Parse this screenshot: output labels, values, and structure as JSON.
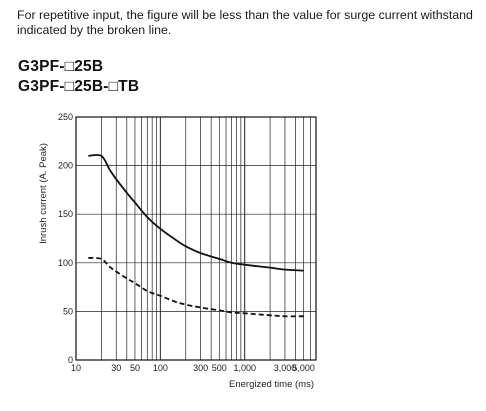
{
  "note": "For repetitive input, the figure will be less than the value for surge current withstand indicated by the broken line.",
  "models": [
    "G3PF-□25B",
    "G3PF-□25B-□TB"
  ],
  "chart_data": {
    "type": "line",
    "xlabel": "Energized time (ms)",
    "ylabel": "Inrush current (A. Peak)",
    "xscale": "log",
    "xlim": [
      10,
      7000
    ],
    "ylim": [
      0,
      250
    ],
    "y_ticks": [
      "0",
      "50",
      "100",
      "150",
      "200",
      "250"
    ],
    "y_tick_values": [
      0,
      50,
      100,
      150,
      200,
      250
    ],
    "x_ticks": [
      "10",
      "30",
      "50",
      "100",
      "300",
      "500",
      "1,000",
      "3,000",
      "5,000"
    ],
    "x_tick_values": [
      10,
      30,
      50,
      100,
      300,
      500,
      1000,
      3000,
      5000
    ],
    "grid": true,
    "series": [
      {
        "style": "solid",
        "color": "#111111",
        "x": [
          14,
          20,
          25,
          30,
          40,
          50,
          70,
          100,
          150,
          200,
          300,
          500,
          700,
          1000,
          2000,
          3000,
          5000
        ],
        "y": [
          210,
          210,
          196,
          186,
          172,
          162,
          147,
          135,
          124,
          117,
          110,
          104,
          100,
          98,
          95,
          93,
          92
        ]
      },
      {
        "style": "dashed",
        "color": "#111111",
        "x": [
          14,
          20,
          25,
          30,
          40,
          50,
          70,
          100,
          150,
          200,
          300,
          500,
          700,
          1000,
          2000,
          3000,
          5000
        ],
        "y": [
          105,
          104,
          96,
          91,
          84,
          79,
          71,
          66,
          60,
          57,
          54,
          51,
          49,
          48,
          46,
          45,
          45
        ]
      }
    ]
  }
}
